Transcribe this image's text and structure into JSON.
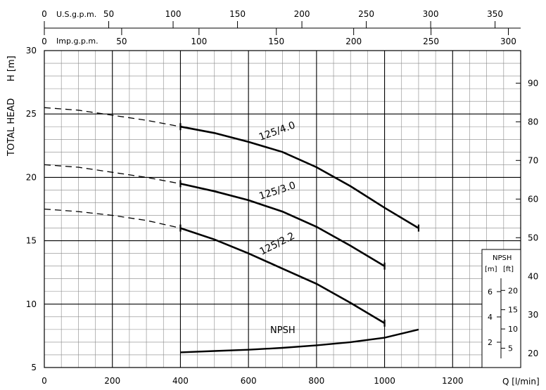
{
  "chart_data": {
    "type": "line",
    "xlabel": "Q [l/min]",
    "ylabel": "TOTAL HEAD",
    "ylabel_unit": "H [m]",
    "xlim": [
      0,
      1400
    ],
    "ylim": [
      5,
      30
    ],
    "x_ticks": [
      "0",
      "200",
      "400",
      "600",
      "800",
      "1000",
      "1200"
    ],
    "y_ticks": [
      "5",
      "10",
      "15",
      "20",
      "25",
      "30"
    ],
    "right_axis": {
      "unit": "ft",
      "ticks": [
        "20",
        "30",
        "40",
        "50",
        "60",
        "70",
        "80",
        "90"
      ]
    },
    "top_axis_usgpm": {
      "label": "U.S.g.p.m.",
      "ticks": [
        "0",
        "50",
        "100",
        "150",
        "200",
        "250",
        "300",
        "350"
      ]
    },
    "top_axis_impgpm": {
      "label": "Imp.g.p.m.",
      "ticks": [
        "0",
        "50",
        "100",
        "150",
        "200",
        "250",
        "300"
      ]
    },
    "grid": true,
    "series": [
      {
        "name": "125/4.0",
        "points": [
          [
            0,
            25.5
          ],
          [
            100,
            25.3
          ],
          [
            200,
            24.9
          ],
          [
            300,
            24.5
          ],
          [
            400,
            24.0
          ],
          [
            500,
            23.5
          ],
          [
            600,
            22.8
          ],
          [
            700,
            22.0
          ],
          [
            800,
            20.8
          ],
          [
            900,
            19.3
          ],
          [
            1000,
            17.6
          ],
          [
            1100,
            16.0
          ]
        ],
        "duty_range": [
          400,
          1100
        ]
      },
      {
        "name": "125/3.0",
        "points": [
          [
            0,
            21.0
          ],
          [
            100,
            20.8
          ],
          [
            200,
            20.4
          ],
          [
            300,
            20.0
          ],
          [
            400,
            19.5
          ],
          [
            500,
            18.9
          ],
          [
            600,
            18.2
          ],
          [
            700,
            17.3
          ],
          [
            800,
            16.1
          ],
          [
            900,
            14.6
          ],
          [
            1000,
            13.0
          ]
        ],
        "duty_range": [
          400,
          1000
        ]
      },
      {
        "name": "125/2.2",
        "points": [
          [
            0,
            17.5
          ],
          [
            100,
            17.3
          ],
          [
            200,
            17.0
          ],
          [
            300,
            16.6
          ],
          [
            400,
            16.0
          ],
          [
            500,
            15.1
          ],
          [
            600,
            14.0
          ],
          [
            700,
            12.8
          ],
          [
            800,
            11.6
          ],
          [
            900,
            10.1
          ],
          [
            1000,
            8.5
          ]
        ],
        "duty_range": [
          400,
          1000
        ]
      }
    ],
    "npsh": {
      "label": "NPSH",
      "inset_title": "NPSH",
      "inset_units": [
        "[m]",
        "[ft]"
      ],
      "inset_m_ticks": [
        "6",
        "4",
        "2"
      ],
      "inset_ft_ticks": [
        "20",
        "15",
        "10",
        "5"
      ],
      "points": [
        [
          400,
          6.2
        ],
        [
          500,
          6.3
        ],
        [
          600,
          6.4
        ],
        [
          700,
          6.55
        ],
        [
          800,
          6.75
        ],
        [
          900,
          7.0
        ],
        [
          1000,
          7.35
        ],
        [
          1100,
          8.0
        ]
      ]
    }
  }
}
